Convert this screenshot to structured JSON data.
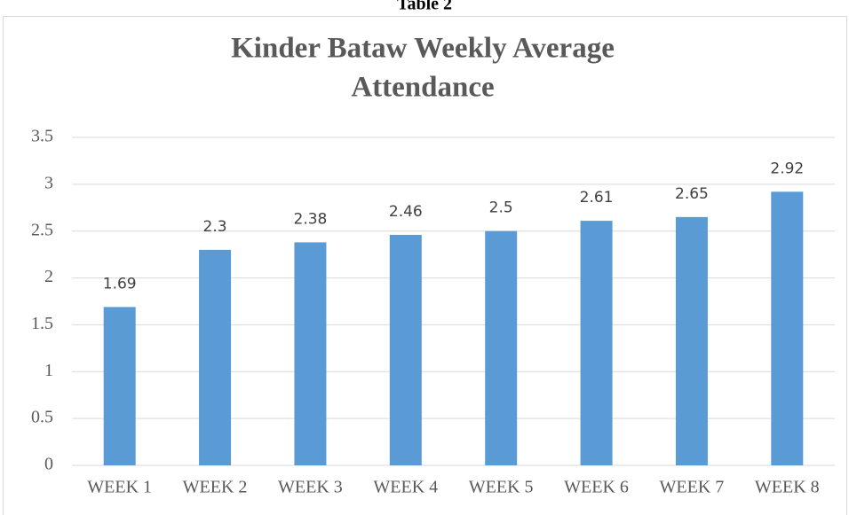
{
  "caption": "Table 2",
  "chart_data": {
    "type": "bar",
    "title": [
      "Kinder Bataw Weekly Average",
      "Attendance"
    ],
    "categories": [
      "WEEK 1",
      "WEEK 2",
      "WEEK 3",
      "WEEK 4",
      "WEEK 5",
      "WEEK 6",
      "WEEK 7",
      "WEEK 8"
    ],
    "values": [
      1.69,
      2.3,
      2.38,
      2.46,
      2.5,
      2.61,
      2.65,
      2.92
    ],
    "color": "#5b9bd5",
    "ylim": [
      0,
      3.5
    ],
    "yticks": [
      0,
      0.5,
      1,
      1.5,
      2,
      2.5,
      3,
      3.5
    ],
    "grid": true
  }
}
